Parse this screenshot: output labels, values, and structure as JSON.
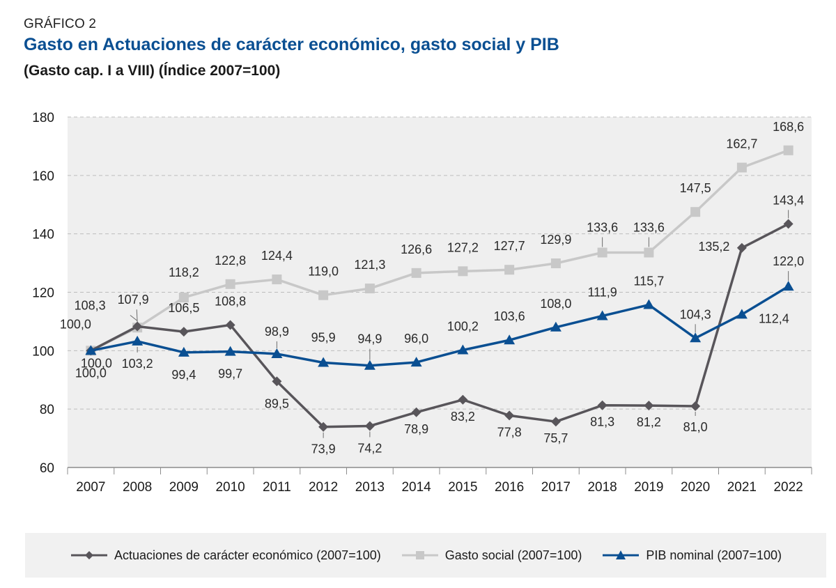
{
  "header": {
    "kicker": "GRÁFICO 2",
    "title": "Gasto en Actuaciones de carácter económico, gasto social y PIB",
    "subtitle": "(Gasto cap. I a VIII) (Índice 2007=100)"
  },
  "chart_data": {
    "type": "line",
    "x": [
      "2007",
      "2008",
      "2009",
      "2010",
      "2011",
      "2012",
      "2013",
      "2014",
      "2015",
      "2016",
      "2017",
      "2018",
      "2019",
      "2020",
      "2021",
      "2022"
    ],
    "ylim": [
      60,
      180
    ],
    "yticks": [
      60,
      80,
      100,
      120,
      140,
      160,
      180
    ],
    "grid": true,
    "legend_position": "bottom",
    "series": [
      {
        "name": "Gasto social (2007=100)",
        "color": "#c8c8c8",
        "marker": "square",
        "values": [
          100.0,
          107.9,
          118.2,
          122.8,
          124.4,
          119.0,
          121.3,
          126.6,
          127.2,
          127.7,
          129.9,
          133.6,
          133.6,
          147.5,
          162.7,
          168.6
        ],
        "labels": [
          "",
          "107,9",
          "118,2",
          "122,8",
          "124,4",
          "119,0",
          "121,3",
          "126,6",
          "127,2",
          "127,7",
          "129,9",
          "133,6",
          "133,6",
          "147,5",
          "162,7",
          "168,6"
        ]
      },
      {
        "name": "Actuaciones de carácter económico (2007=100)",
        "color": "#58555a",
        "marker": "diamond",
        "values": [
          100.0,
          108.3,
          106.5,
          108.8,
          89.5,
          73.9,
          74.2,
          78.9,
          83.2,
          77.8,
          75.7,
          81.3,
          81.2,
          81.0,
          135.2,
          143.4
        ],
        "labels": [
          "100,0",
          "108,3",
          "106,5",
          "108,8",
          "89,5",
          "73,9",
          "74,2",
          "78,9",
          "83,2",
          "77,8",
          "75,7",
          "81,3",
          "81,2",
          "81,0",
          "135,2",
          "143,4"
        ]
      },
      {
        "name": "PIB nominal (2007=100)",
        "color": "#0a4f92",
        "marker": "triangle",
        "values": [
          100.0,
          103.2,
          99.4,
          99.7,
          98.9,
          95.9,
          94.9,
          96.0,
          100.2,
          103.6,
          108.0,
          111.9,
          115.7,
          104.3,
          112.4,
          122.0
        ],
        "labels": [
          "100,0",
          "103,2",
          "99,4",
          "99,7",
          "98,9",
          "95,9",
          "94,9",
          "96,0",
          "100,2",
          "103,6",
          "108,0",
          "111,9",
          "115,7",
          "104,3",
          "112,4",
          "122,0"
        ]
      }
    ],
    "y_tick_labels": [
      "60",
      "80",
      "100",
      "120",
      "140",
      "160",
      "180"
    ],
    "extra_labels": [
      {
        "series": 0,
        "index": 0,
        "text": "100,0"
      }
    ]
  },
  "legend": {
    "items": [
      {
        "label": "Actuaciones de carácter económico (2007=100)",
        "color": "#58555a",
        "marker": "diamond"
      },
      {
        "label": "Gasto social (2007=100)",
        "color": "#c8c8c8",
        "marker": "square"
      },
      {
        "label": "PIB nominal (2007=100)",
        "color": "#0a4f92",
        "marker": "triangle"
      }
    ]
  }
}
